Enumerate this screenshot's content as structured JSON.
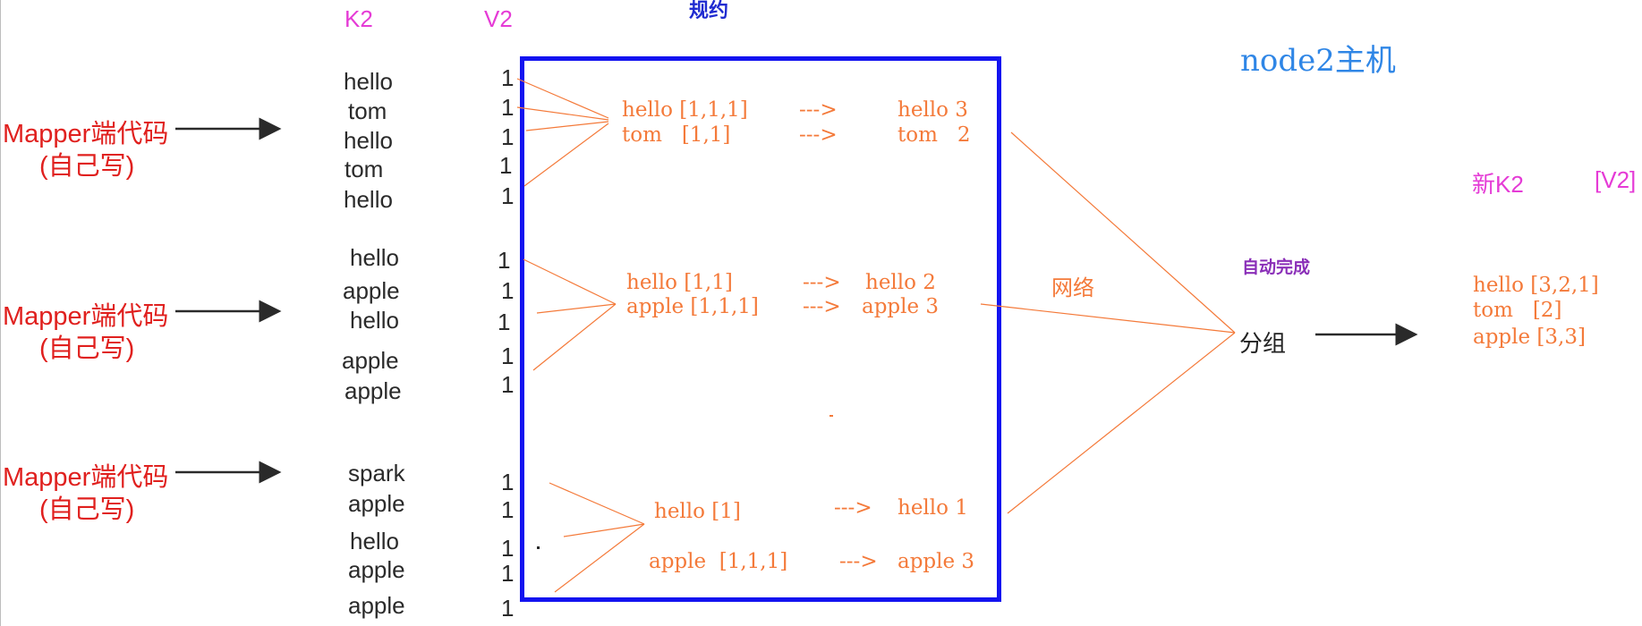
{
  "headers": {
    "k2": "K2",
    "v2": "V2",
    "combine_title": "规约",
    "node_label": "node2主机",
    "new_k2": "新K2",
    "new_v2": "[V2]"
  },
  "mappers": [
    {
      "label": "Mapper端代码",
      "sub": "(自己写)",
      "keys": [
        "hello",
        "tom",
        "hello",
        "tom",
        "hello"
      ],
      "values": [
        "1",
        "1",
        "1",
        "1",
        "1"
      ],
      "combined": [
        {
          "key_list": "hello [1,1,1]",
          "arrow": "--->",
          "result": "hello 3"
        },
        {
          "key_list": "tom   [1,1]",
          "arrow": "--->",
          "result": "tom   2"
        }
      ]
    },
    {
      "label": "Mapper端代码",
      "sub": "(自己写)",
      "keys": [
        "hello",
        "apple",
        "hello",
        "apple",
        "apple"
      ],
      "values": [
        "1",
        "1",
        "1",
        "1",
        "1"
      ],
      "combined": [
        {
          "key_list": "hello [1,1]",
          "arrow": "--->",
          "result": "hello 2"
        },
        {
          "key_list": "apple [1,1,1]",
          "arrow": "--->",
          "result": "apple 3"
        }
      ]
    },
    {
      "label": "Mapper端代码",
      "sub": "(自己写)",
      "keys": [
        "spark",
        "apple",
        "hello",
        "apple",
        "apple"
      ],
      "values": [
        "1",
        "1",
        "1",
        "1",
        "1"
      ],
      "combined": [
        {
          "key_list": "hello [1]",
          "arrow": "--->",
          "result": "hello 1"
        },
        {
          "key_list": "apple  [1,1,1]",
          "arrow": "--->",
          "result": "apple 3"
        }
      ]
    }
  ],
  "network_label": "网络",
  "auto_complete_label": "自动完成",
  "group_label": "分组",
  "grouped_output": [
    "hello [3,2,1]",
    "tom   [2]",
    "apple [3,3]"
  ],
  "colors": {
    "mapper_red": "#e0201e",
    "header_magenta": "#e53bd6",
    "box_blue": "#1313f0",
    "flow_orange": "#f47a3a",
    "node_blue": "#2f86e6",
    "auto_purple": "#8a2fb8"
  }
}
